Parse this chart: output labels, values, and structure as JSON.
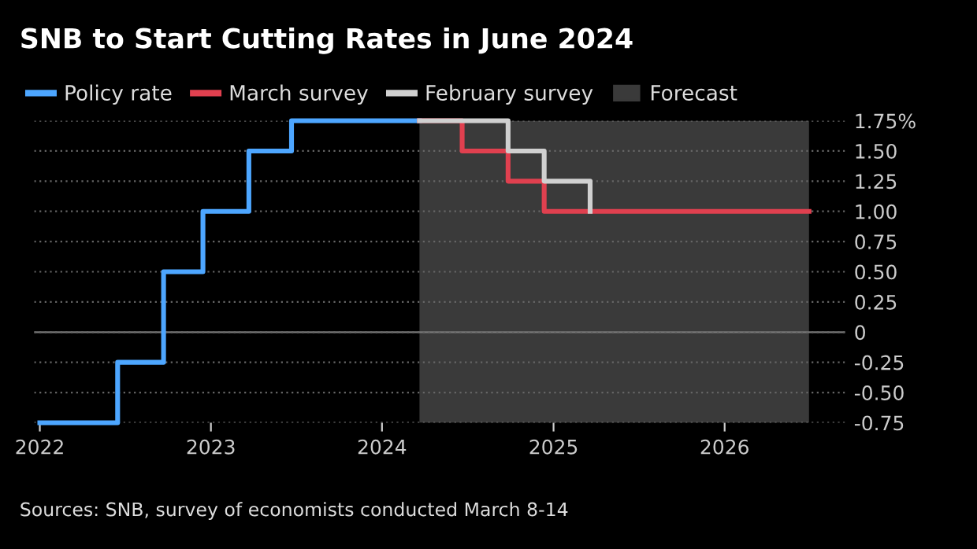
{
  "chart_data": {
    "type": "step",
    "title": "SNB to Start Cutting Rates in June 2024",
    "series": [
      {
        "name": "Policy rate",
        "color": "#4da6ff",
        "x": [
          "2022-01-01",
          "2022-06-16",
          "2022-09-22",
          "2022-12-15",
          "2023-03-23",
          "2023-06-22",
          "2024-03-21"
        ],
        "values": [
          -0.75,
          -0.25,
          0.5,
          1.0,
          1.5,
          1.75,
          1.75
        ]
      },
      {
        "name": "March survey",
        "color": "#e0404f",
        "x": [
          "2024-03-21",
          "2024-06-20",
          "2024-09-26",
          "2024-12-12",
          "2026-06-30"
        ],
        "values": [
          1.75,
          1.5,
          1.25,
          1.0,
          1.0
        ]
      },
      {
        "name": "February survey",
        "color": "#d0d0d0",
        "x": [
          "2024-03-21",
          "2024-09-26",
          "2024-12-12",
          "2025-03-20"
        ],
        "values": [
          1.75,
          1.5,
          1.25,
          1.0
        ]
      }
    ],
    "bands": [
      {
        "axis": "x",
        "from": "2024-03-21",
        "to": "2026-06-30",
        "label": "Forecast",
        "color": "#3a3a3a"
      }
    ],
    "ref_lines": [
      {
        "axis": "y",
        "value": 0,
        "color": "#777777"
      }
    ],
    "xlim": [
      "2021-12-20",
      "2026-09-15"
    ],
    "xticks": [
      {
        "value": "2022-01-01",
        "label": "2022"
      },
      {
        "value": "2023-01-01",
        "label": "2023"
      },
      {
        "value": "2024-01-01",
        "label": "2024"
      },
      {
        "value": "2025-01-01",
        "label": "2025"
      },
      {
        "value": "2026-01-01",
        "label": "2026"
      }
    ],
    "ylim": [
      -0.75,
      1.75
    ],
    "yticks": [
      {
        "value": 1.75,
        "label": "1.75%"
      },
      {
        "value": 1.5,
        "label": "1.50"
      },
      1.25,
      {
        "value": 1,
        "label": "1.00"
      },
      0.75,
      {
        "value": 0.5,
        "label": "0.50"
      },
      0.25,
      0,
      -0.25,
      {
        "value": -0.5,
        "label": "-0.50"
      },
      -0.75
    ],
    "grid": "y",
    "legend": "top left",
    "line_style": "solid",
    "marker": "none",
    "annotations": [
      "Sources: SNB, survey of economists conducted March 8-14"
    ]
  }
}
